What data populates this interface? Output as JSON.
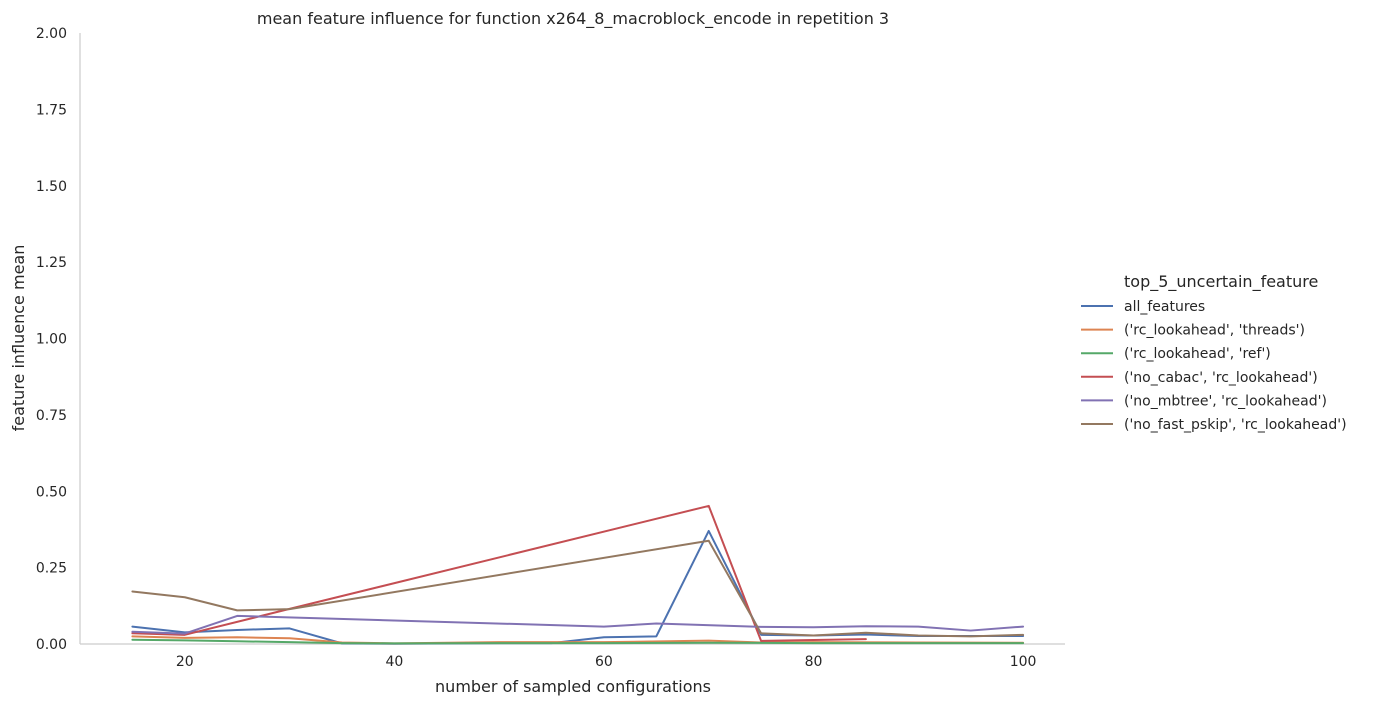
{
  "chart_data": {
    "type": "line",
    "title": "mean feature influence for function x264_8_macroblock_encode in repetition 3",
    "xlabel": "number of sampled configurations",
    "ylabel": "feature influence mean",
    "xlim": [
      10,
      104
    ],
    "ylim": [
      0,
      2.0
    ],
    "xticks": [
      20,
      40,
      60,
      80,
      100
    ],
    "yticks": [
      0.0,
      0.25,
      0.5,
      0.75,
      1.0,
      1.25,
      1.5,
      1.75,
      2.0
    ],
    "ytick_labels": [
      "0.00",
      "0.25",
      "0.50",
      "0.75",
      "1.00",
      "1.25",
      "1.50",
      "1.75",
      "2.00"
    ],
    "grid": false,
    "legend": {
      "title": "top_5_uncertain_feature",
      "placement": "right"
    },
    "series": [
      {
        "name": "all_features",
        "color": "#4c72b0",
        "points": [
          [
            15,
            0.057
          ],
          [
            20,
            0.038
          ],
          [
            25,
            0.046
          ],
          [
            30,
            0.051
          ],
          [
            35,
            0.002
          ],
          [
            40,
            0.001
          ],
          [
            45,
            0.002
          ],
          [
            50,
            0.003
          ],
          [
            55,
            0.003
          ],
          [
            60,
            0.022
          ],
          [
            65,
            0.025
          ],
          [
            70,
            0.37
          ],
          [
            75,
            0.03
          ],
          [
            80,
            0.028
          ],
          [
            85,
            0.031
          ],
          [
            90,
            0.026
          ],
          [
            95,
            0.026
          ],
          [
            100,
            0.026
          ]
        ]
      },
      {
        "name": "('rc_lookahead', 'threads')",
        "color": "#dd8452",
        "points": [
          [
            15,
            0.025
          ],
          [
            20,
            0.02
          ],
          [
            25,
            0.022
          ],
          [
            30,
            0.019
          ],
          [
            35,
            0.005
          ],
          [
            40,
            0.002
          ],
          [
            50,
            0.006
          ],
          [
            60,
            0.006
          ],
          [
            70,
            0.011
          ],
          [
            75,
            0.005
          ],
          [
            80,
            0.006
          ],
          [
            90,
            0.005
          ],
          [
            100,
            0.004
          ]
        ]
      },
      {
        "name": "('rc_lookahead', 'ref')",
        "color": "#55a868",
        "points": [
          [
            15,
            0.014
          ],
          [
            20,
            0.012
          ],
          [
            25,
            0.009
          ],
          [
            30,
            0.006
          ],
          [
            35,
            0.003
          ],
          [
            40,
            0.002
          ],
          [
            50,
            0.003
          ],
          [
            60,
            0.003
          ],
          [
            70,
            0.004
          ],
          [
            80,
            0.003
          ],
          [
            90,
            0.003
          ],
          [
            100,
            0.003
          ]
        ]
      },
      {
        "name": "('no_cabac', 'rc_lookahead')",
        "color": "#c44e52",
        "points": [
          [
            15,
            0.035
          ],
          [
            20,
            0.03
          ],
          [
            30,
            0.115
          ],
          [
            70,
            0.452
          ],
          [
            75,
            0.01
          ],
          [
            80,
            0.013
          ],
          [
            85,
            0.016
          ]
        ]
      },
      {
        "name": "('no_mbtree', 'rc_lookahead')",
        "color": "#8172b3",
        "points": [
          [
            15,
            0.04
          ],
          [
            20,
            0.034
          ],
          [
            25,
            0.092
          ],
          [
            60,
            0.057
          ],
          [
            65,
            0.067
          ],
          [
            75,
            0.056
          ],
          [
            80,
            0.055
          ],
          [
            85,
            0.058
          ],
          [
            90,
            0.057
          ],
          [
            95,
            0.044
          ],
          [
            100,
            0.057
          ]
        ]
      },
      {
        "name": "('no_fast_pskip', 'rc_lookahead')",
        "color": "#937860",
        "points": [
          [
            15,
            0.172
          ],
          [
            20,
            0.153
          ],
          [
            25,
            0.11
          ],
          [
            30,
            0.114
          ],
          [
            70,
            0.338
          ],
          [
            75,
            0.035
          ],
          [
            80,
            0.028
          ],
          [
            85,
            0.037
          ],
          [
            90,
            0.028
          ],
          [
            95,
            0.025
          ],
          [
            100,
            0.03
          ]
        ]
      }
    ]
  }
}
